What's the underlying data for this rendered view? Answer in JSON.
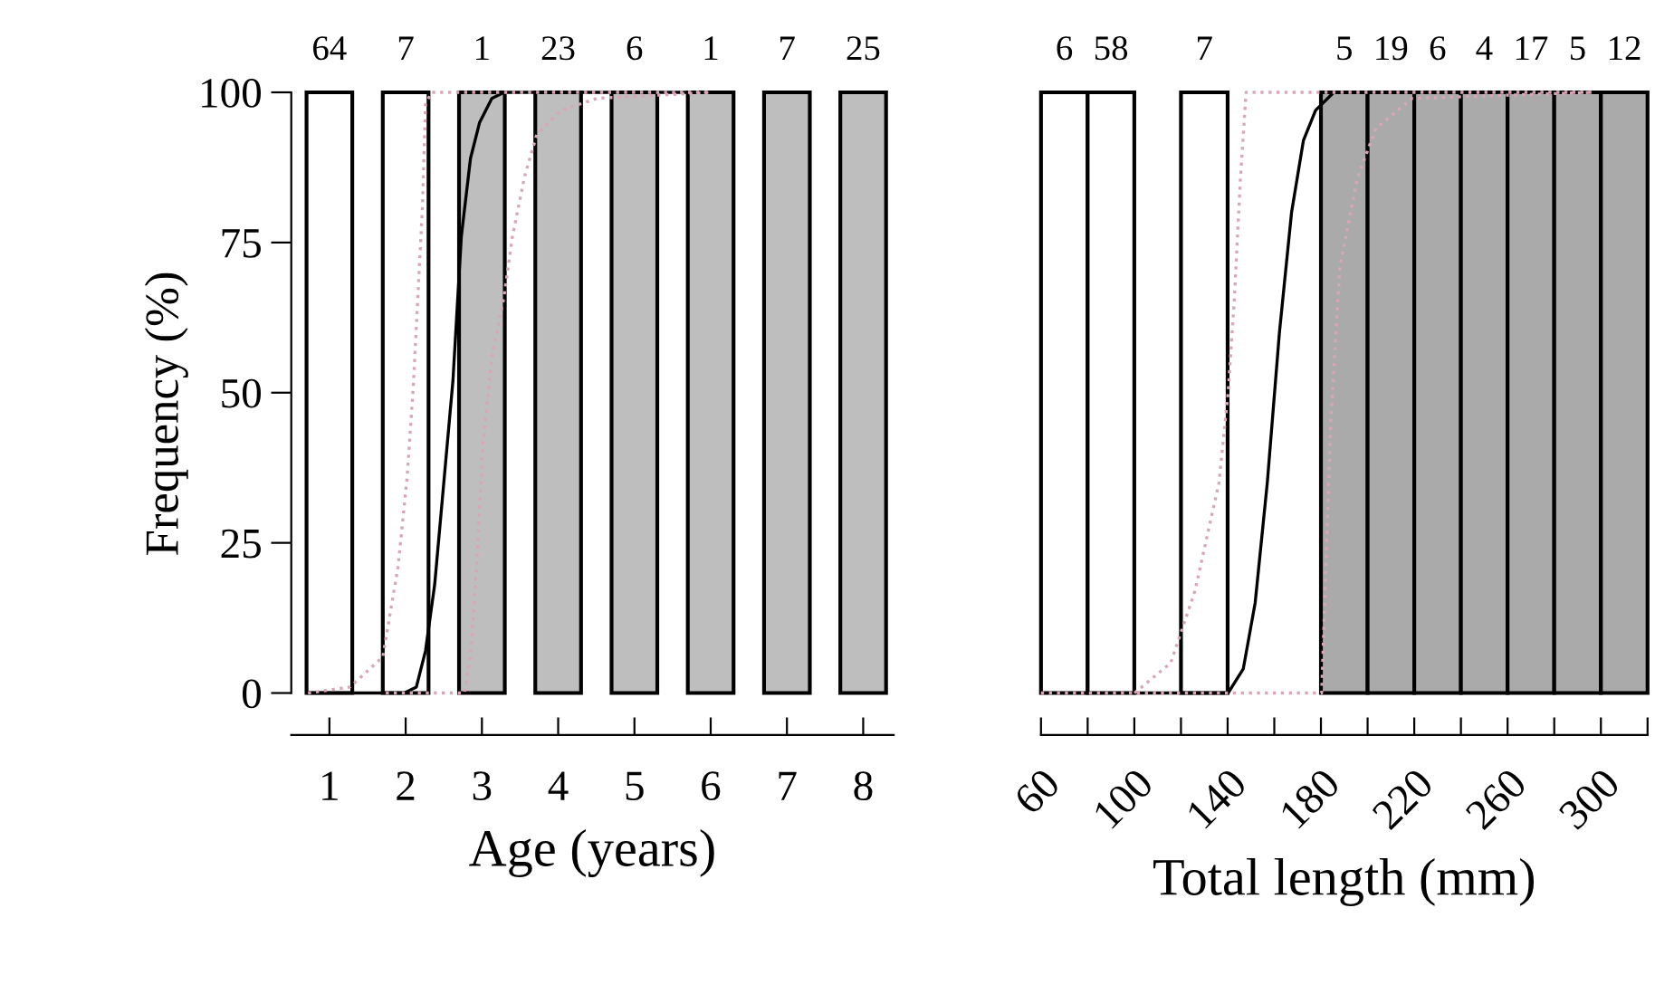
{
  "chart_data": [
    {
      "type": "bar",
      "stacked": true,
      "x": [
        1,
        2,
        3,
        4,
        5,
        6,
        7,
        8
      ],
      "xlim": [
        0.5,
        8.4
      ],
      "xticks": [
        1,
        2,
        3,
        4,
        5,
        6,
        7,
        8
      ],
      "ylim": [
        -7,
        100
      ],
      "yticks": [
        0,
        25,
        50,
        75,
        100
      ],
      "xlabel": "Age (years)",
      "ylabel": "Frequency (%)",
      "grid": false,
      "legend": false,
      "series": [
        {
          "color": "#ffffff",
          "values": [
            100,
            100,
            0,
            0,
            0,
            0,
            0,
            0
          ]
        },
        {
          "color": "#bebebe",
          "values": [
            0,
            0,
            100,
            100,
            100,
            100,
            100,
            100
          ]
        },
        {
          "type": "line",
          "color": "#000000",
          "line_style": "solid",
          "x": [
            0.72,
            1.98,
            2.14,
            2.26,
            2.38,
            2.5,
            2.62,
            2.73,
            2.85,
            2.97,
            3.13,
            3.29,
            6.01
          ],
          "values": [
            0,
            0,
            1,
            7,
            18,
            35,
            52,
            76,
            89,
            95,
            99,
            100,
            100
          ]
        },
        {
          "type": "line",
          "color": "#d9a6b8",
          "line_style": "dotted",
          "x": [
            0.72,
            1.27,
            1.7,
            1.9,
            2.02,
            2.1,
            2.16,
            2.22,
            2.26,
            2.34,
            6.01
          ],
          "values": [
            0,
            1,
            6,
            21,
            36,
            51,
            66,
            81,
            98,
            100,
            100
          ]
        },
        {
          "type": "line",
          "color": "#d9a6b8",
          "line_style": "dotted",
          "x": [
            1.74,
            2.77,
            2.85,
            2.93,
            3.01,
            3.13,
            3.29,
            3.4,
            3.56,
            3.72,
            4.04,
            4.51,
            6.01
          ],
          "values": [
            0,
            0,
            6,
            21,
            41,
            56,
            66,
            76,
            86,
            93,
            97,
            99,
            100
          ]
        }
      ],
      "annotations": [
        {
          "text": "64",
          "x": 1,
          "y": 100
        },
        {
          "text": "7",
          "x": 2,
          "y": 100
        },
        {
          "text": "1",
          "x": 3,
          "y": 100
        },
        {
          "text": "23",
          "x": 4,
          "y": 100
        },
        {
          "text": "6",
          "x": 5,
          "y": 100
        },
        {
          "text": "1",
          "x": 6,
          "y": 100
        },
        {
          "text": "7",
          "x": 7,
          "y": 100
        },
        {
          "text": "25",
          "x": 8,
          "y": 100
        }
      ]
    },
    {
      "type": "bar",
      "stacked": true,
      "x": [
        70,
        90,
        110,
        130,
        150,
        170,
        190,
        210,
        230,
        250,
        270,
        290,
        310
      ],
      "xlim": [
        60,
        320
      ],
      "xticks": [
        60,
        {
          "value": 80,
          "label": null
        },
        100,
        {
          "value": 120,
          "label": null
        },
        140,
        {
          "value": 160,
          "label": null
        },
        180,
        {
          "value": 200,
          "label": null
        },
        220,
        {
          "value": 240,
          "label": null
        },
        260,
        {
          "value": 280,
          "label": null
        },
        300,
        {
          "value": 320,
          "label": null
        }
      ],
      "ylim": [
        -7,
        100
      ],
      "xlabel": "Total length (mm)",
      "tick_labels": "x",
      "grid": false,
      "legend": false,
      "series": [
        {
          "color": "#ffffff",
          "values": [
            100,
            100,
            null,
            100,
            null,
            null,
            0,
            0,
            0,
            0,
            0,
            0,
            0
          ]
        },
        {
          "color": "#aaaaaa",
          "values": [
            0,
            0,
            null,
            0,
            null,
            null,
            100,
            100,
            100,
            100,
            100,
            100,
            100
          ]
        },
        {
          "type": "line",
          "color": "#000000",
          "line_style": "solid",
          "x": [
            100.1,
            140.2,
            146.7,
            151.8,
            157.0,
            162.2,
            167.4,
            172.5,
            177.7,
            185.5,
            219.1
          ],
          "values": [
            0,
            0,
            4,
            15,
            35,
            60,
            80,
            92,
            97,
            100,
            100
          ]
        },
        {
          "type": "line",
          "color": "#d9a6b8",
          "line_style": "dotted",
          "x": [
            100.1,
            115.6,
            126.0,
            136.3,
            140.2,
            142.8,
            145.4,
            147.9,
            296.7
          ],
          "values": [
            0,
            5,
            17,
            35,
            50,
            65,
            85,
            100,
            100
          ]
        },
        {
          "type": "line",
          "color": "#d9a6b8",
          "line_style": "dotted",
          "x": [
            60,
            180.3,
            181.6,
            184.2,
            188.1,
            195.8,
            203.6,
            219.1,
            296.7
          ],
          "values": [
            0,
            0,
            15,
            45,
            71,
            86,
            94,
            99,
            100
          ]
        }
      ],
      "annotations": [
        {
          "text": "6",
          "x": 70,
          "y": 100
        },
        {
          "text": "58",
          "x": 90,
          "y": 100
        },
        {
          "text": "7",
          "x": 130,
          "y": 100
        },
        {
          "text": "5",
          "x": 190,
          "y": 100
        },
        {
          "text": "19",
          "x": 210,
          "y": 100
        },
        {
          "text": "6",
          "x": 230,
          "y": 100
        },
        {
          "text": "4",
          "x": 250,
          "y": 100
        },
        {
          "text": "17",
          "x": 270,
          "y": 100
        },
        {
          "text": "5",
          "x": 290,
          "y": 100
        },
        {
          "text": "12",
          "x": 310,
          "y": 100
        }
      ]
    }
  ]
}
